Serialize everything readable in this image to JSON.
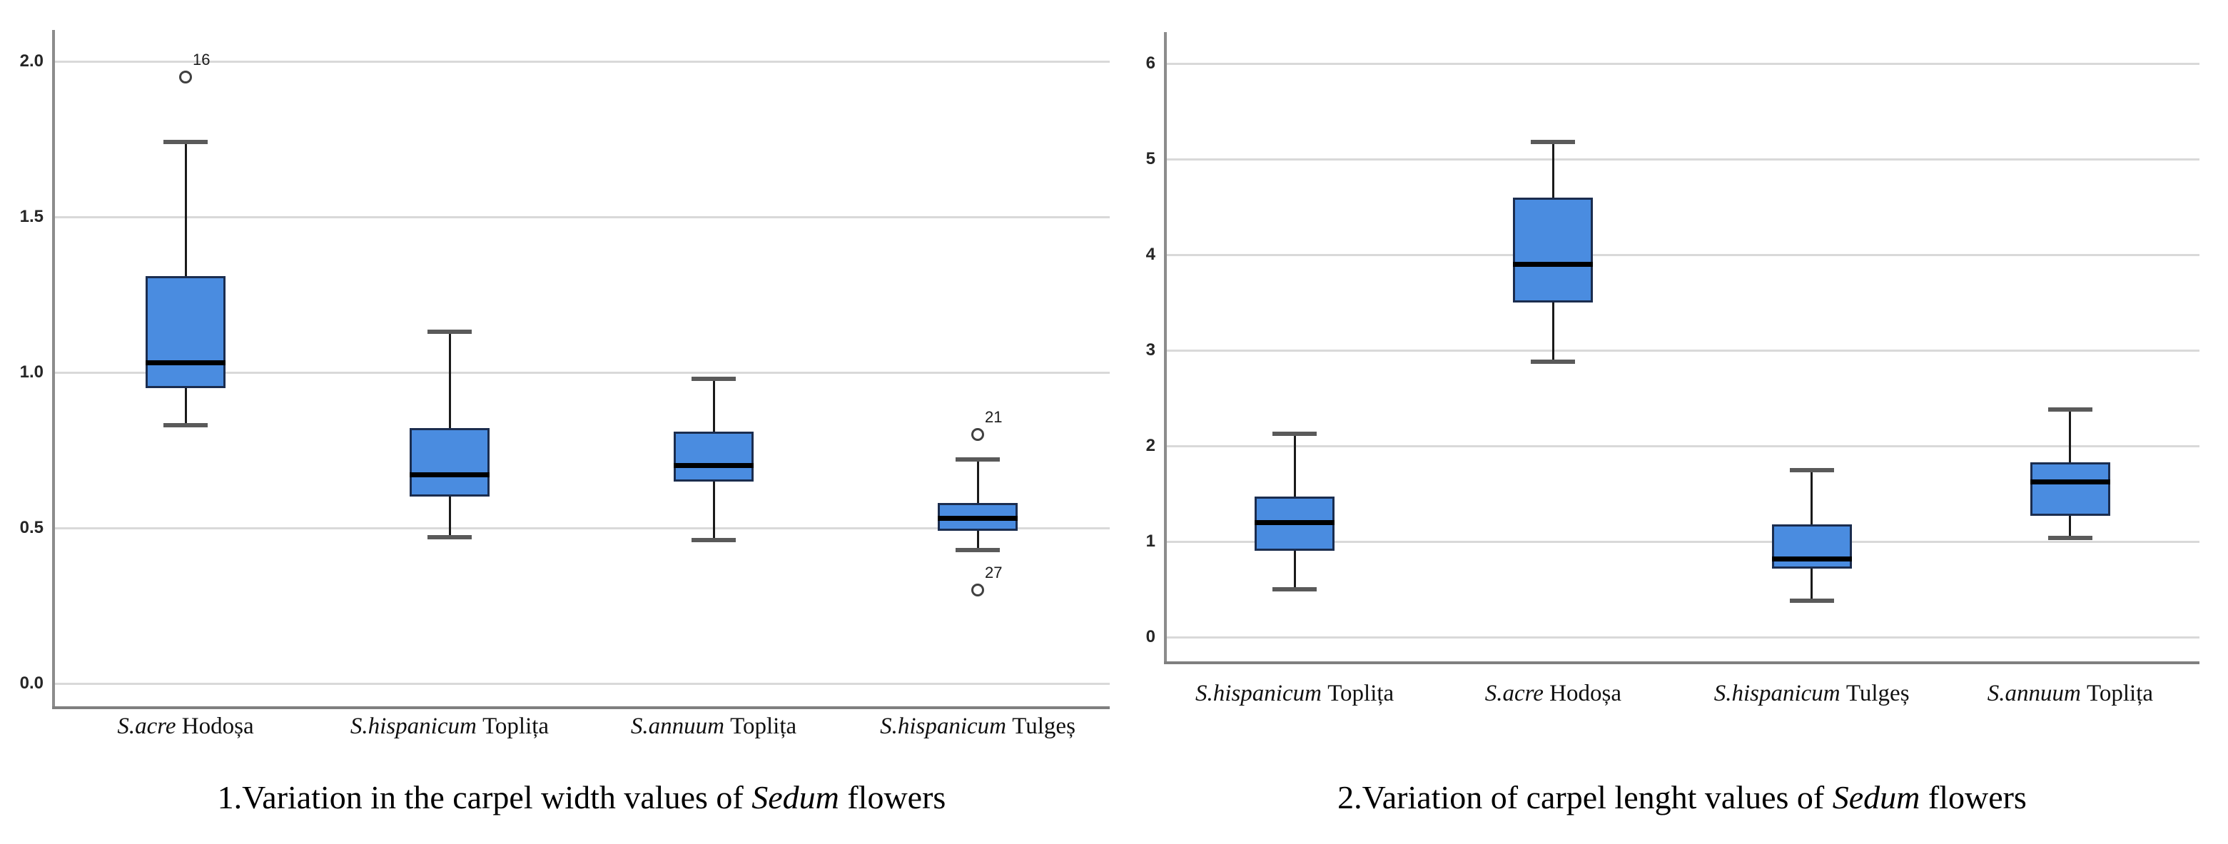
{
  "figure": {
    "background": "#ffffff",
    "caption_left": {
      "prefix": "1.Variation in the carpel width values of ",
      "italic_word": "Sedum",
      "suffix": " flowers"
    },
    "caption_right": {
      "prefix": "2.Variation of carpel lenght values of ",
      "italic_word": "Sedum",
      "suffix": " flowers"
    }
  },
  "colors": {
    "box_fill": "#4a8ce0",
    "box_border": "#1b2d4f",
    "median": "#000000",
    "whisker": "#1a1a1a",
    "whisker_cap": "#5a5a5a",
    "gridline": "#d9d9d9",
    "y_axis": "#8c8c8c",
    "x_axis": "#7f7f7f",
    "outlier_border": "#404040",
    "tick_text": "#262626",
    "category_text": "#111111"
  },
  "chart_data": [
    {
      "type": "boxplot",
      "caption": {
        "prefix": "1.Variation in the carpel width values of ",
        "italic_word": "Sedum",
        "suffix": " flowers"
      },
      "xlabel": "",
      "ylabel": "",
      "ylim": [
        0.0,
        2.0
      ],
      "ytick_values": [
        2.0,
        1.5,
        1.0,
        0.5,
        0.0
      ],
      "ytick_labels": [
        "2.0",
        "1.5",
        "1.0",
        "0.5",
        "0.0"
      ],
      "grid": true,
      "legend": "none",
      "categories": [
        {
          "species": "S.acre",
          "location": "Hodoșa",
          "label": "S.acre Hodoșa"
        },
        {
          "species": "S.hispanicum",
          "location": "Toplița",
          "label": "S.hispanicum Toplița"
        },
        {
          "species": "S.annuum",
          "location": "Toplița",
          "label": "S.annuum Toplița"
        },
        {
          "species": "S.hispanicum",
          "location": "Tulgeș",
          "label": "S.hispanicum Tulgeș"
        }
      ],
      "boxes": [
        {
          "whisker_low": 0.83,
          "q1": 0.95,
          "median": 1.03,
          "q3": 1.31,
          "whisker_high": 1.74,
          "outliers": [
            {
              "value": 1.95,
              "label": "16"
            }
          ]
        },
        {
          "whisker_low": 0.47,
          "q1": 0.6,
          "median": 0.67,
          "q3": 0.82,
          "whisker_high": 1.13,
          "outliers": []
        },
        {
          "whisker_low": 0.46,
          "q1": 0.65,
          "median": 0.7,
          "q3": 0.81,
          "whisker_high": 0.98,
          "outliers": []
        },
        {
          "whisker_low": 0.43,
          "q1": 0.49,
          "median": 0.53,
          "q3": 0.58,
          "whisker_high": 0.72,
          "outliers": [
            {
              "value": 0.8,
              "label": "21"
            },
            {
              "value": 0.3,
              "label": "27"
            }
          ]
        }
      ]
    },
    {
      "type": "boxplot",
      "caption": {
        "prefix": "2.Variation of carpel lenght values of ",
        "italic_word": "Sedum",
        "suffix": " flowers"
      },
      "xlabel": "",
      "ylabel": "",
      "ylim": [
        0,
        6
      ],
      "ytick_values": [
        6,
        5,
        4,
        3,
        2,
        1,
        0
      ],
      "ytick_labels": [
        "6",
        "5",
        "4",
        "3",
        "2",
        "1",
        "0"
      ],
      "grid": true,
      "legend": "none",
      "categories": [
        {
          "species": "S.hispanicum",
          "location": "Toplița",
          "label": "S.hispanicum Toplița"
        },
        {
          "species": "S.acre",
          "location": "Hodoșa",
          "label": "S.acre Hodoșa"
        },
        {
          "species": "S.hispanicum",
          "location": "Tulgeș",
          "label": "S.hispanicum Tulgeș"
        },
        {
          "species": "S.annuum",
          "location": "Toplița",
          "label": "S.annuum Toplița"
        }
      ],
      "boxes": [
        {
          "whisker_low": 0.5,
          "q1": 0.9,
          "median": 1.2,
          "q3": 1.47,
          "whisker_high": 2.13,
          "outliers": []
        },
        {
          "whisker_low": 2.88,
          "q1": 3.5,
          "median": 3.9,
          "q3": 4.6,
          "whisker_high": 5.18,
          "outliers": []
        },
        {
          "whisker_low": 0.38,
          "q1": 0.72,
          "median": 0.82,
          "q3": 1.18,
          "whisker_high": 1.75,
          "outliers": []
        },
        {
          "whisker_low": 1.04,
          "q1": 1.27,
          "median": 1.62,
          "q3": 1.83,
          "whisker_high": 2.38,
          "outliers": []
        }
      ]
    }
  ]
}
